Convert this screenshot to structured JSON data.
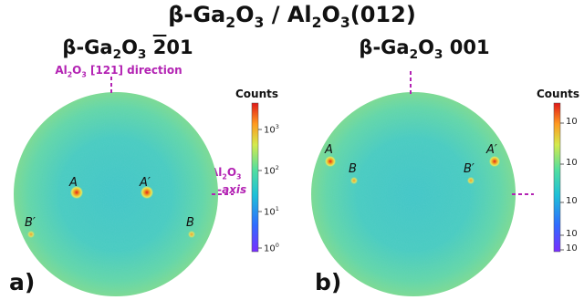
{
  "title": {
    "prefix": "β-Ga",
    "sub2": "2",
    "mid": "O",
    "sub3": "3",
    "suffix": " / Al",
    "sub4": "2",
    "mid2": "O",
    "sub5": "3",
    "end": "(012)"
  },
  "panel_a": {
    "title_prefix": "β-Ga",
    "title_sub1": "2",
    "title_mid": "O",
    "title_sub2": "3",
    "title_space": " ",
    "title_over": "2",
    "title_end": "01",
    "letter": "a)",
    "direction_label_pre": "Al",
    "direction_sub1": "2",
    "direction_mid": "O",
    "direction_sub2": "3",
    "direction_end": " [121] direction",
    "axis_label_pre": "Al",
    "axis_sub1": "2",
    "axis_mid": "O",
    "axis_sub2": "3",
    "axis_label_line2": "a-axis",
    "spots": [
      "A",
      "A′",
      "B′",
      "B"
    ]
  },
  "panel_b": {
    "title_prefix": "β-Ga",
    "title_sub1": "2",
    "title_mid": "O",
    "title_sub2": "3",
    "title_end": " 001",
    "letter": "b)",
    "spots": [
      "A",
      "A′",
      "B",
      "B′"
    ]
  },
  "colorbar_a": {
    "title": "Counts",
    "ticks": [
      {
        "base": "10",
        "exp": "3"
      },
      {
        "base": "10",
        "exp": "2"
      },
      {
        "base": "10",
        "exp": "1"
      },
      {
        "base": "10",
        "exp": "0"
      }
    ]
  },
  "colorbar_b": {
    "title": "Counts",
    "ticks": [
      "10",
      "10",
      "10",
      "10",
      "10"
    ]
  },
  "colors": {
    "accent": "#b323b3",
    "background_disc": "#55d6a8",
    "spot_core": "#d42020"
  }
}
